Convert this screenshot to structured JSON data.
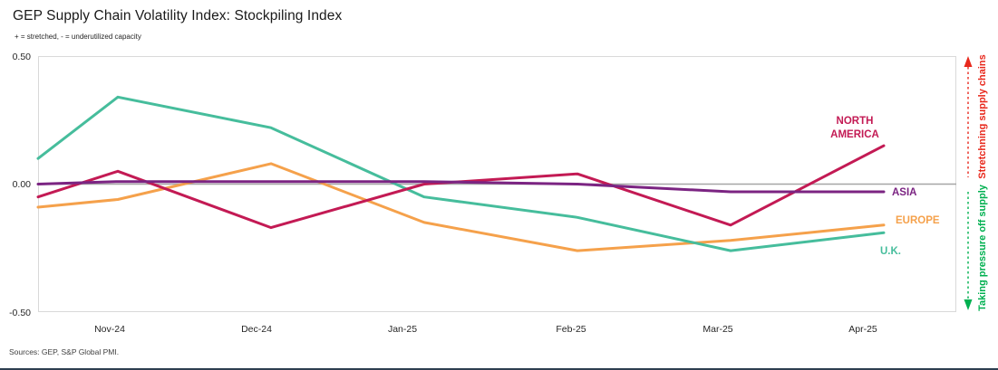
{
  "header": {
    "title": "GEP Supply Chain Volatility Index: Stockpiling Index",
    "subtitle": "+ = stretched, - = underutilized capacity"
  },
  "footer": {
    "source": "Sources: GEP, S&P Global PMI."
  },
  "annotations": {
    "up": {
      "text": "Stretchning supply chains",
      "color": "#e8281c"
    },
    "down": {
      "text": "Taking pressure off supply",
      "color": "#00b050"
    }
  },
  "chart_data": {
    "type": "line",
    "title": "GEP Supply Chain Volatility Index: Stockpiling Index",
    "categories": [
      "Nov-24",
      "Dec-24",
      "Jan-25",
      "Feb-25",
      "Mar-25",
      "Apr-25"
    ],
    "y_ticks": [
      "0.50",
      "0.00",
      "-0.50"
    ],
    "ylim": [
      -0.5,
      0.5
    ],
    "zero_line": true,
    "grid": false,
    "legend_position": "end-of-line-labels",
    "axis_colors": {
      "zero_line": "#a6a6a6",
      "plot_border": "#d9d9d9"
    },
    "series": [
      {
        "name": "NORTH AMERICA",
        "label_lines": [
          "NORTH",
          "AMERICA"
        ],
        "color": "#c31a54",
        "start_value": -0.05,
        "values": [
          0.05,
          -0.17,
          0.0,
          0.04,
          -0.16,
          0.15
        ]
      },
      {
        "name": "ASIA",
        "label_lines": [
          "ASIA"
        ],
        "color": "#7b2482",
        "start_value": 0.0,
        "values": [
          0.01,
          0.01,
          0.01,
          0.0,
          -0.03,
          -0.03
        ]
      },
      {
        "name": "EUROPE",
        "label_lines": [
          "EUROPE"
        ],
        "color": "#f5a14b",
        "start_value": -0.09,
        "values": [
          -0.06,
          0.08,
          -0.15,
          -0.26,
          -0.22,
          -0.16
        ]
      },
      {
        "name": "U.K.",
        "label_lines": [
          "U.K."
        ],
        "color": "#46bd9c",
        "start_value": 0.1,
        "values": [
          0.34,
          0.22,
          -0.05,
          -0.13,
          -0.26,
          -0.19
        ]
      }
    ]
  }
}
